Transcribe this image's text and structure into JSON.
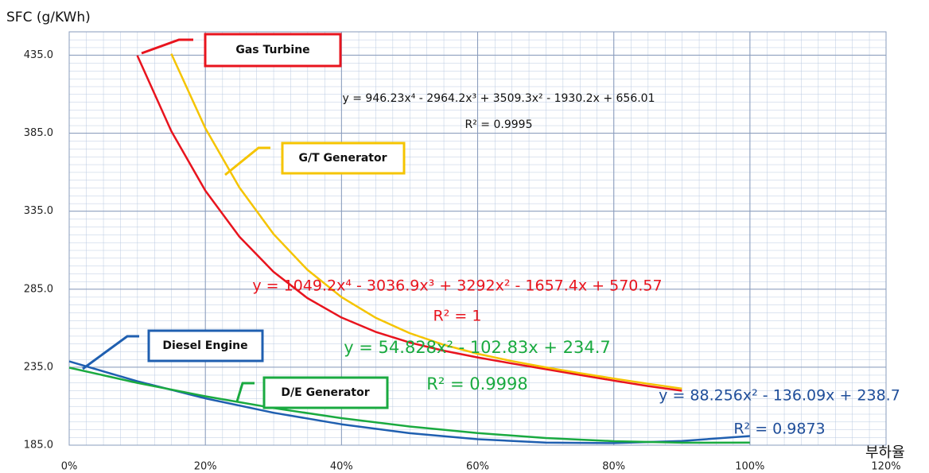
{
  "chart_data": {
    "type": "line",
    "y_label": "SFC (g/KWh)",
    "x_label": "부하율",
    "xlim": [
      0,
      120
    ],
    "xticks": [
      {
        "value": 0,
        "label": "0%"
      },
      {
        "value": 20,
        "label": "20%"
      },
      {
        "value": 40,
        "label": "40%"
      },
      {
        "value": 60,
        "label": "60%"
      },
      {
        "value": 80,
        "label": "80%"
      },
      {
        "value": 100,
        "label": "100%"
      },
      {
        "value": 120,
        "label": "120%"
      }
    ],
    "ylim": [
      185,
      450
    ],
    "yticks": [
      {
        "value": 185,
        "label": "185.0"
      },
      {
        "value": 235,
        "label": "235.0"
      },
      {
        "value": 285,
        "label": "285.0"
      },
      {
        "value": 335,
        "label": "335.0"
      },
      {
        "value": 385,
        "label": "385.0"
      },
      {
        "value": 435,
        "label": "435.0"
      }
    ],
    "grid": true,
    "minor_grid": true,
    "series": [
      {
        "name": "Gas Turbine",
        "color": "#e8141e",
        "x": [
          10,
          15,
          20,
          25,
          30,
          35,
          40,
          45,
          50,
          55,
          60,
          65,
          70,
          75,
          80,
          85,
          90
        ],
        "values": [
          434.8,
          386.3,
          348.15,
          318.62,
          296.13,
          279.28,
          266.83,
          257.65,
          250.84,
          245.58,
          241.26,
          237.41,
          233.72,
          230.05,
          226.39,
          222.9,
          219.91
        ],
        "equation": "y = 1049.2x⁴ - 3036.9x³ + 3292x² - 1657.4x + 570.57",
        "r2": "R² = 1"
      },
      {
        "name": "G/T Generator",
        "color": "#f5c400",
        "x": [
          15,
          20,
          25,
          30,
          35,
          40,
          45,
          50,
          55,
          60,
          65,
          70,
          75,
          80,
          85,
          90
        ],
        "values": [
          435.92,
          388.14,
          350.17,
          320.42,
          297.44,
          279.93,
          266.74,
          256.85,
          249.38,
          243.6,
          238.93,
          234.9,
          231.21,
          227.71,
          224.38,
          221.28
        ],
        "equation": "y = 946.23x⁴ - 2964.2x³ + 3509.3x² - 1930.2x + 656.01",
        "r2": "R² = 0.9995"
      },
      {
        "name": "Diesel Engine",
        "color": "#1f5fb0",
        "x": [
          0,
          10,
          20,
          30,
          40,
          50,
          60,
          70,
          80,
          90,
          100
        ],
        "values": [
          238.7,
          225.97,
          215.01,
          205.81,
          198.38,
          192.71,
          188.82,
          186.69,
          186.31,
          187.71,
          190.87
        ],
        "equation": "y = 88.256x² - 136.09x + 238.7",
        "r2": "R² = 0.9873"
      },
      {
        "name": "D/E Generator",
        "color": "#1aaa40",
        "x": [
          0,
          10,
          20,
          30,
          40,
          50,
          60,
          70,
          80,
          90,
          100
        ],
        "values": [
          234.7,
          224.97,
          216.32,
          208.78,
          202.34,
          196.99,
          192.74,
          189.59,
          187.53,
          186.56,
          186.7
        ],
        "equation": "y = 54.828x² - 102.83x + 234.7",
        "r2": "R² = 0.9998"
      }
    ]
  }
}
